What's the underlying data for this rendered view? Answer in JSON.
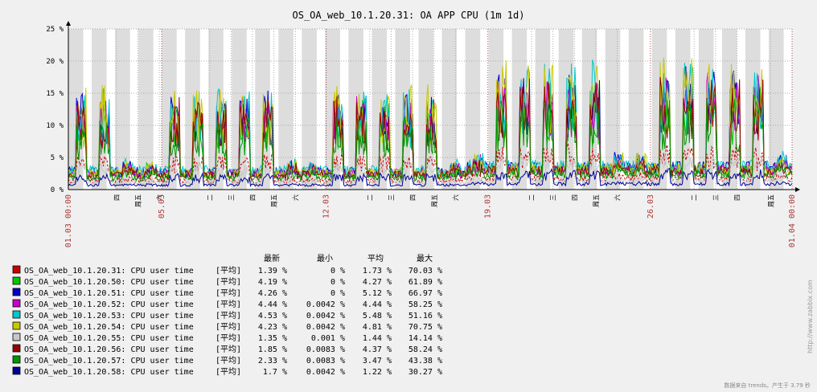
{
  "chart_data": {
    "type": "line",
    "title": "OS_OA_web_10.1.20.31: OA APP CPU (1m 1d)",
    "y_unit": "%",
    "y_ticks": [
      "0 %",
      "5 %",
      "10 %",
      "15 %",
      "20 %",
      "25 %"
    ],
    "ylim": [
      0,
      25
    ],
    "grid": true,
    "x_labels": [
      {
        "pos": 0.0,
        "text": "01.03 00:00",
        "color": "#b03a3a",
        "major": true
      },
      {
        "pos": 0.0665,
        "text": "四",
        "color": "#000000",
        "major": false
      },
      {
        "pos": 0.0961,
        "text": "周五",
        "color": "#000000",
        "major": false
      },
      {
        "pos": 0.1257,
        "text": "六",
        "color": "#000000",
        "major": false
      },
      {
        "pos": 0.1289,
        "text": "05.03",
        "color": "#b03a3a",
        "major": true
      },
      {
        "pos": 0.1953,
        "text": "二",
        "color": "#000000",
        "major": false
      },
      {
        "pos": 0.2249,
        "text": "三",
        "color": "#000000",
        "major": false
      },
      {
        "pos": 0.2545,
        "text": "四",
        "color": "#000000",
        "major": false
      },
      {
        "pos": 0.2841,
        "text": "周五",
        "color": "#000000",
        "major": false
      },
      {
        "pos": 0.3137,
        "text": "六",
        "color": "#000000",
        "major": false
      },
      {
        "pos": 0.3562,
        "text": "12.03",
        "color": "#b03a3a",
        "major": true
      },
      {
        "pos": 0.4165,
        "text": "二",
        "color": "#000000",
        "major": false
      },
      {
        "pos": 0.4461,
        "text": "三",
        "color": "#000000",
        "major": false
      },
      {
        "pos": 0.4757,
        "text": "四",
        "color": "#000000",
        "major": false
      },
      {
        "pos": 0.5053,
        "text": "周五",
        "color": "#000000",
        "major": false
      },
      {
        "pos": 0.5349,
        "text": "六",
        "color": "#000000",
        "major": false
      },
      {
        "pos": 0.5797,
        "text": "19.03",
        "color": "#b03a3a",
        "major": true
      },
      {
        "pos": 0.64,
        "text": "二",
        "color": "#000000",
        "major": false
      },
      {
        "pos": 0.6696,
        "text": "三",
        "color": "#000000",
        "major": false
      },
      {
        "pos": 0.6992,
        "text": "四",
        "color": "#000000",
        "major": false
      },
      {
        "pos": 0.7288,
        "text": "周五",
        "color": "#000000",
        "major": false
      },
      {
        "pos": 0.7584,
        "text": "六",
        "color": "#000000",
        "major": false
      },
      {
        "pos": 0.8043,
        "text": "26.03",
        "color": "#b03a3a",
        "major": true
      },
      {
        "pos": 0.8646,
        "text": "二",
        "color": "#000000",
        "major": false
      },
      {
        "pos": 0.8942,
        "text": "三",
        "color": "#000000",
        "major": false
      },
      {
        "pos": 0.9238,
        "text": "四",
        "color": "#000000",
        "major": false
      },
      {
        "pos": 0.9704,
        "text": "周五",
        "color": "#000000",
        "major": false
      },
      {
        "pos": 1.0,
        "text": "01.04 00:00",
        "color": "#b03a3a",
        "major": true
      }
    ],
    "days": 31,
    "legend_headers": [
      "最新",
      "最小",
      "平均",
      "最大"
    ],
    "series": [
      {
        "name": "OS_OA_web_10.1.20.31: CPU user time",
        "agg": "[平均]",
        "last": "1.39 %",
        "min": "0 %",
        "avg": "1.73 %",
        "max": "70.03 %",
        "color": "#c80000",
        "dashed": true,
        "base": 1.6,
        "peak": 3.2,
        "seed": 11
      },
      {
        "name": "OS_OA_web_10.1.20.50: CPU user time",
        "agg": "[平均]",
        "last": "4.19 %",
        "min": "0 %",
        "avg": "4.27 %",
        "max": "61.89 %",
        "color": "#00c800",
        "dashed": false,
        "base": 2.8,
        "peak": 8.5,
        "seed": 23
      },
      {
        "name": "OS_OA_web_10.1.20.51: CPU user time",
        "agg": "[平均]",
        "last": "4.26 %",
        "min": "0 %",
        "avg": "5.12 %",
        "max": "66.97 %",
        "color": "#0000c8",
        "dashed": false,
        "base": 3.2,
        "peak": 9.5,
        "seed": 37
      },
      {
        "name": "OS_OA_web_10.1.20.52: CPU user time",
        "agg": "[平均]",
        "last": "4.44 %",
        "min": "0.0042 %",
        "avg": "4.44 %",
        "max": "58.25 %",
        "color": "#c800c8",
        "dashed": false,
        "base": 2.9,
        "peak": 9.0,
        "seed": 41
      },
      {
        "name": "OS_OA_web_10.1.20.53: CPU user time",
        "agg": "[平均]",
        "last": "4.53 %",
        "min": "0.0042 %",
        "avg": "5.48 %",
        "max": "51.16 %",
        "color": "#00c8c8",
        "dashed": false,
        "base": 3.4,
        "peak": 10.0,
        "seed": 53
      },
      {
        "name": "OS_OA_web_10.1.20.54: CPU user time",
        "agg": "[平均]",
        "last": "4.23 %",
        "min": "0.0042 %",
        "avg": "4.81 %",
        "max": "70.75 %",
        "color": "#c8c800",
        "dashed": false,
        "base": 3.0,
        "peak": 10.5,
        "seed": 67
      },
      {
        "name": "OS_OA_web_10.1.20.55: CPU user time",
        "agg": "[平均]",
        "last": "1.35 %",
        "min": "0.001 %",
        "avg": "1.44 %",
        "max": "14.14 %",
        "color": "#c8c8c8",
        "dashed": false,
        "base": 1.2,
        "peak": 2.5,
        "seed": 71
      },
      {
        "name": "OS_OA_web_10.1.20.56: CPU user time",
        "agg": "[平均]",
        "last": "1.85 %",
        "min": "0.0083 %",
        "avg": "4.37 %",
        "max": "58.24 %",
        "color": "#960000",
        "dashed": false,
        "base": 2.7,
        "peak": 9.0,
        "seed": 83
      },
      {
        "name": "OS_OA_web_10.1.20.57: CPU user time",
        "agg": "[平均]",
        "last": "2.33 %",
        "min": "0.0083 %",
        "avg": "3.47 %",
        "max": "43.38 %",
        "color": "#009600",
        "dashed": false,
        "base": 2.2,
        "peak": 7.0,
        "seed": 97
      },
      {
        "name": "OS_OA_web_10.1.20.58: CPU user time",
        "agg": "[平均]",
        "last": "1.7 %",
        "min": "0.0042 %",
        "avg": "1.22 %",
        "max": "30.27 %",
        "color": "#000096",
        "dashed": false,
        "base": 0.8,
        "peak": 1.4,
        "seed": 101
      }
    ]
  },
  "watermark": "http://www.zabbix.com",
  "footer": "数据来自 trends。产生于 3.79 秒"
}
